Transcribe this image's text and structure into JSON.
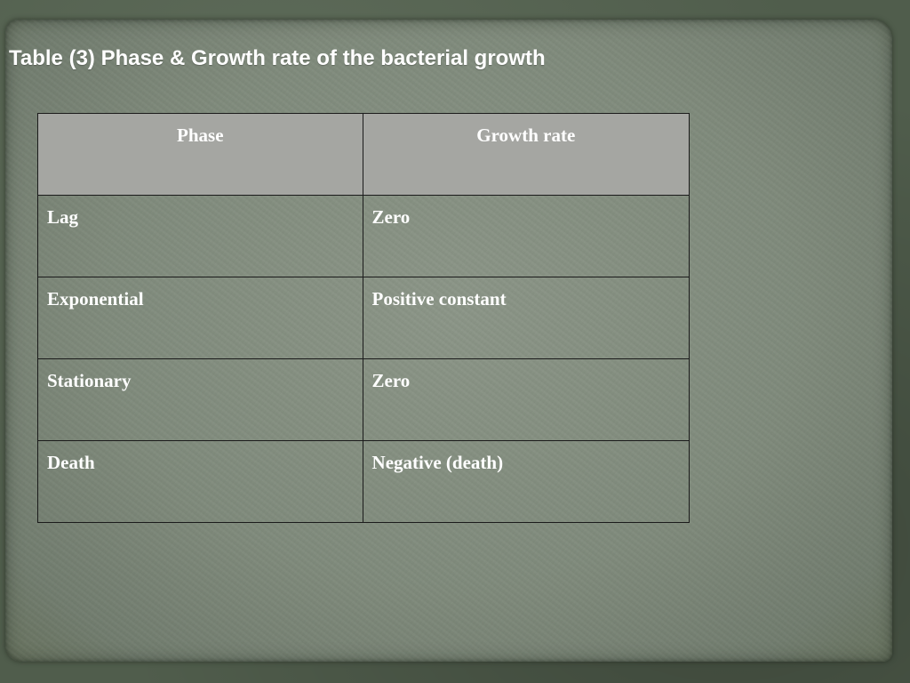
{
  "slide": {
    "title": "Table (3) Phase & Growth rate of the bacterial growth"
  },
  "table": {
    "headers": [
      "Phase",
      "Growth rate"
    ],
    "rows": [
      {
        "phase": "Lag",
        "rate": "Zero"
      },
      {
        "phase": "Exponential",
        "rate": "Positive constant"
      },
      {
        "phase": "Stationary",
        "rate": "Zero"
      },
      {
        "phase": "Death",
        "rate": "Negative (death)"
      }
    ]
  },
  "colors": {
    "background": "#505d4c",
    "paper": "#818c7d",
    "header_fill": "#a5a6a2",
    "text": "#ffffff",
    "border": "#1b1b1b"
  }
}
